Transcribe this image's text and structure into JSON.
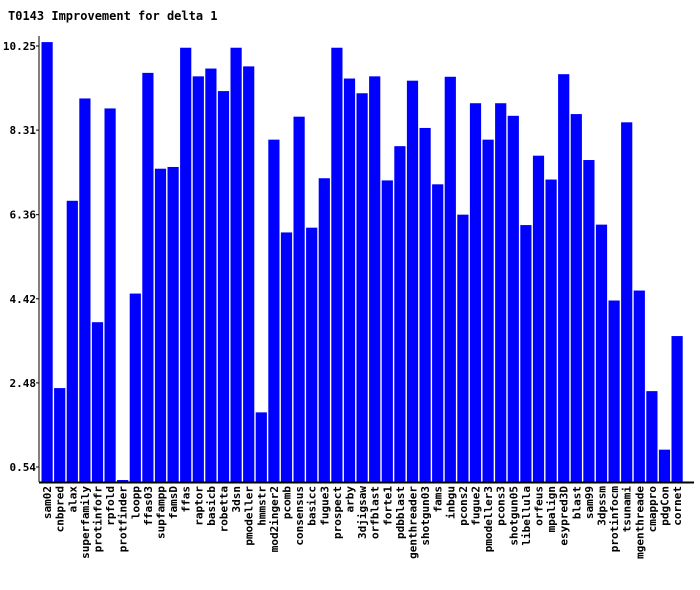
{
  "chart_data": {
    "type": "bar",
    "title": "T0143 Improvement for delta 1",
    "xlabel": "",
    "ylabel": "",
    "ylim": [
      0.0,
      11.0
    ],
    "yticks": [
      "0.54",
      "2.48",
      "4.42",
      "6.36",
      "8.31",
      "10.25"
    ],
    "bar_color": "#0000ff",
    "axis_color": "#000000",
    "grid": false,
    "legend": "none",
    "categories": [
      "sam02",
      "cnbpred",
      "alax",
      "superfamily",
      "protinfofr",
      "rpfold",
      "protfinder",
      "loopp",
      "ffas03",
      "supfampp",
      "famsD",
      "ffas",
      "raptor",
      "basicb",
      "robetta",
      "3dsn",
      "pmodeller",
      "hmmstr",
      "mod2inger2",
      "pcomb",
      "consensus",
      "basicc",
      "fugue3",
      "prospect",
      "arby",
      "3djigsaw",
      "orfblast",
      "forte1",
      "pdbblast",
      "genthreader",
      "shotgun03",
      "fams",
      "inbgu",
      "pcons2",
      "fugue2",
      "pmodeller3",
      "pcons3",
      "shotgun05",
      "libellula",
      "orfeus",
      "mpalign",
      "esypred3D",
      "blast",
      "sam99",
      "3dpssm",
      "protinfocm",
      "tsunami",
      "mgenthreade",
      "cmappro",
      "pdgCon",
      "cornet"
    ],
    "values": [
      10.34,
      2.36,
      6.68,
      9.04,
      3.88,
      8.81,
      0.24,
      4.54,
      9.63,
      7.42,
      7.46,
      10.21,
      9.55,
      9.73,
      9.21,
      10.21,
      9.78,
      1.8,
      8.09,
      5.95,
      8.62,
      6.06,
      7.2,
      10.21,
      9.5,
      9.16,
      9.55,
      7.15,
      7.94,
      9.45,
      8.36,
      7.06,
      9.54,
      6.36,
      8.93,
      8.09,
      8.93,
      8.64,
      6.12,
      7.72,
      7.17,
      9.6,
      8.68,
      7.62,
      6.13,
      4.38,
      8.49,
      4.61,
      2.29,
      0.94,
      3.56
    ]
  }
}
